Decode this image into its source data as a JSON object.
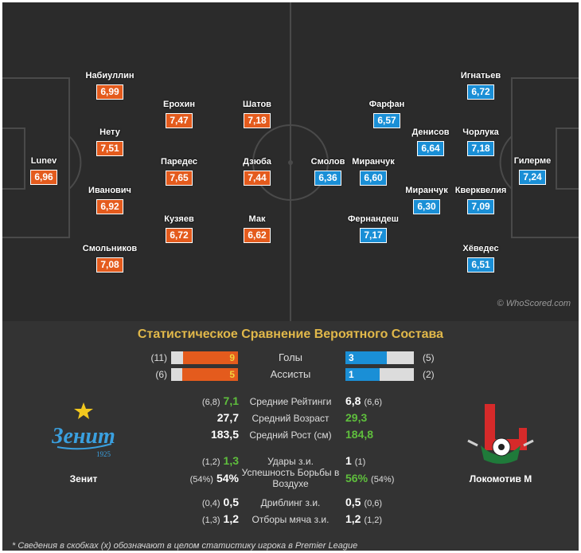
{
  "pitch": {
    "watermark": "© WhoScored.com",
    "home_players": [
      {
        "name": "Lunev",
        "rating": "6,96"
      },
      {
        "name": "Набиуллин",
        "rating": "6,99"
      },
      {
        "name": "Нету",
        "rating": "7,51"
      },
      {
        "name": "Иванович",
        "rating": "6,92"
      },
      {
        "name": "Смольников",
        "rating": "7,08"
      },
      {
        "name": "Ерохин",
        "rating": "7,47"
      },
      {
        "name": "Паредес",
        "rating": "7,65"
      },
      {
        "name": "Кузяев",
        "rating": "6,72"
      },
      {
        "name": "Шатов",
        "rating": "7,18"
      },
      {
        "name": "Дзюба",
        "rating": "7,44"
      },
      {
        "name": "Мак",
        "rating": "6,62"
      }
    ],
    "away_players": [
      {
        "name": "Гилерме",
        "rating": "7,24"
      },
      {
        "name": "Игнатьев",
        "rating": "6,72"
      },
      {
        "name": "Чорлука",
        "rating": "7,18"
      },
      {
        "name": "Кверквелия",
        "rating": "7,09"
      },
      {
        "name": "Хёведес",
        "rating": "6,51"
      },
      {
        "name": "Денисов",
        "rating": "6,64"
      },
      {
        "name": "Миранчук",
        "rating": "6,30"
      },
      {
        "name": "Фарфан",
        "rating": "6,57"
      },
      {
        "name": "Миранчук",
        "rating": "6,60"
      },
      {
        "name": "Фернандеш",
        "rating": "7,17"
      },
      {
        "name": "Смолов",
        "rating": "6,36"
      }
    ]
  },
  "colors": {
    "home": "#e45b1d",
    "away": "#1a8fd6",
    "title": "#e1b84a",
    "better": "#5fbf3d"
  },
  "comparison": {
    "title": "Статистическое Сравнение Вероятного Состава",
    "bars": [
      {
        "label": "Голы",
        "home_paren": "(11)",
        "home_value": "9",
        "home_fraction": 0.82,
        "away_value": "3",
        "away_paren": "(5)",
        "away_fraction": 0.6
      },
      {
        "label": "Ассисты",
        "home_paren": "(6)",
        "home_value": "5",
        "home_fraction": 0.83,
        "away_value": "1",
        "away_paren": "(2)",
        "away_fraction": 0.5
      }
    ],
    "stats": [
      {
        "label": "Средние Рейтинги",
        "home_paren": "(6,8)",
        "home_value": "7,1",
        "home_better": true,
        "away_value": "6,8",
        "away_paren": "(6,6)",
        "away_better": false
      },
      {
        "label": "Средний Возраст",
        "home_paren": "",
        "home_value": "27,7",
        "home_better": false,
        "away_value": "29,3",
        "away_paren": "",
        "away_better": true
      },
      {
        "label": "Средний Рост (см)",
        "home_paren": "",
        "home_value": "183,5",
        "home_better": false,
        "away_value": "184,8",
        "away_paren": "",
        "away_better": true
      },
      {
        "label": "Удары з.и.",
        "home_paren": "(1,2)",
        "home_value": "1,3",
        "home_better": true,
        "away_value": "1",
        "away_paren": "(1)",
        "away_better": false
      },
      {
        "label": "Успешность Борьбы в Воздухе",
        "home_paren": "(54%)",
        "home_value": "54%",
        "home_better": false,
        "away_value": "56%",
        "away_paren": "(54%)",
        "away_better": true
      },
      {
        "label": "Дриблинг з.и.",
        "home_paren": "(0,4)",
        "home_value": "0,5",
        "home_better": false,
        "away_value": "0,5",
        "away_paren": "(0,6)",
        "away_better": false
      },
      {
        "label": "Отборы мяча з.и.",
        "home_paren": "(1,3)",
        "home_value": "1,2",
        "home_better": false,
        "away_value": "1,2",
        "away_paren": "(1,2)",
        "away_better": false
      }
    ],
    "home_team": {
      "name": "Зенит",
      "logo_text": "Зенит",
      "logo_year": "1925"
    },
    "away_team": {
      "name": "Локомотив М"
    },
    "footnote": "* Сведения в скобках (x) обозначают в целом статистику игрока в Premier League"
  }
}
